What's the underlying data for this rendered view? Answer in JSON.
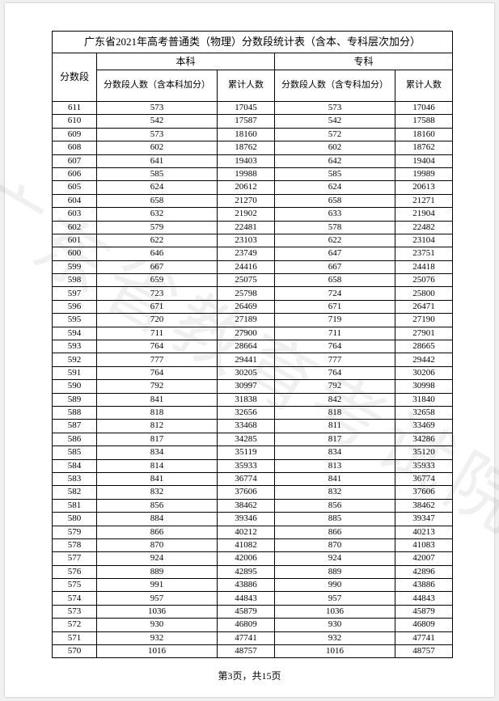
{
  "watermark": "广东省教育考试院",
  "title": "广东省2021年高考普通类（物理）分数段统计表（含本、专科层次加分）",
  "header": {
    "score": "分数段",
    "benke": "本科",
    "zhuanke": "专科",
    "benke_count": "分数段人数（含本科加分）",
    "zhuanke_count": "分数段人数（含专科加分）",
    "cumulative": "累计人数"
  },
  "footer": "第3页，共15页",
  "rows": [
    {
      "s": "611",
      "bc": "573",
      "bm": "17045",
      "zc": "573",
      "zm": "17046"
    },
    {
      "s": "610",
      "bc": "542",
      "bm": "17587",
      "zc": "542",
      "zm": "17588"
    },
    {
      "s": "609",
      "bc": "573",
      "bm": "18160",
      "zc": "572",
      "zm": "18160"
    },
    {
      "s": "608",
      "bc": "602",
      "bm": "18762",
      "zc": "602",
      "zm": "18762"
    },
    {
      "s": "607",
      "bc": "641",
      "bm": "19403",
      "zc": "642",
      "zm": "19404"
    },
    {
      "s": "606",
      "bc": "585",
      "bm": "19988",
      "zc": "585",
      "zm": "19989"
    },
    {
      "s": "605",
      "bc": "624",
      "bm": "20612",
      "zc": "624",
      "zm": "20613"
    },
    {
      "s": "604",
      "bc": "658",
      "bm": "21270",
      "zc": "658",
      "zm": "21271"
    },
    {
      "s": "603",
      "bc": "632",
      "bm": "21902",
      "zc": "633",
      "zm": "21904"
    },
    {
      "s": "602",
      "bc": "579",
      "bm": "22481",
      "zc": "578",
      "zm": "22482"
    },
    {
      "s": "601",
      "bc": "622",
      "bm": "23103",
      "zc": "622",
      "zm": "23104"
    },
    {
      "s": "600",
      "bc": "646",
      "bm": "23749",
      "zc": "647",
      "zm": "23751"
    },
    {
      "s": "599",
      "bc": "667",
      "bm": "24416",
      "zc": "667",
      "zm": "24418"
    },
    {
      "s": "598",
      "bc": "659",
      "bm": "25075",
      "zc": "658",
      "zm": "25076"
    },
    {
      "s": "597",
      "bc": "723",
      "bm": "25798",
      "zc": "724",
      "zm": "25800"
    },
    {
      "s": "596",
      "bc": "671",
      "bm": "26469",
      "zc": "671",
      "zm": "26471"
    },
    {
      "s": "595",
      "bc": "720",
      "bm": "27189",
      "zc": "719",
      "zm": "27190"
    },
    {
      "s": "594",
      "bc": "711",
      "bm": "27900",
      "zc": "711",
      "zm": "27901"
    },
    {
      "s": "593",
      "bc": "764",
      "bm": "28664",
      "zc": "764",
      "zm": "28665"
    },
    {
      "s": "592",
      "bc": "777",
      "bm": "29441",
      "zc": "777",
      "zm": "29442"
    },
    {
      "s": "591",
      "bc": "764",
      "bm": "30205",
      "zc": "764",
      "zm": "30206"
    },
    {
      "s": "590",
      "bc": "792",
      "bm": "30997",
      "zc": "792",
      "zm": "30998"
    },
    {
      "s": "589",
      "bc": "841",
      "bm": "31838",
      "zc": "842",
      "zm": "31840"
    },
    {
      "s": "588",
      "bc": "818",
      "bm": "32656",
      "zc": "818",
      "zm": "32658"
    },
    {
      "s": "587",
      "bc": "812",
      "bm": "33468",
      "zc": "811",
      "zm": "33469"
    },
    {
      "s": "586",
      "bc": "817",
      "bm": "34285",
      "zc": "817",
      "zm": "34286"
    },
    {
      "s": "585",
      "bc": "834",
      "bm": "35119",
      "zc": "834",
      "zm": "35120"
    },
    {
      "s": "584",
      "bc": "814",
      "bm": "35933",
      "zc": "813",
      "zm": "35933"
    },
    {
      "s": "583",
      "bc": "841",
      "bm": "36774",
      "zc": "841",
      "zm": "36774"
    },
    {
      "s": "582",
      "bc": "832",
      "bm": "37606",
      "zc": "832",
      "zm": "37606"
    },
    {
      "s": "581",
      "bc": "856",
      "bm": "38462",
      "zc": "856",
      "zm": "38462"
    },
    {
      "s": "580",
      "bc": "884",
      "bm": "39346",
      "zc": "885",
      "zm": "39347"
    },
    {
      "s": "579",
      "bc": "866",
      "bm": "40212",
      "zc": "866",
      "zm": "40213"
    },
    {
      "s": "578",
      "bc": "870",
      "bm": "41082",
      "zc": "870",
      "zm": "41083"
    },
    {
      "s": "577",
      "bc": "924",
      "bm": "42006",
      "zc": "924",
      "zm": "42007"
    },
    {
      "s": "576",
      "bc": "889",
      "bm": "42895",
      "zc": "889",
      "zm": "42896"
    },
    {
      "s": "575",
      "bc": "991",
      "bm": "43886",
      "zc": "990",
      "zm": "43886"
    },
    {
      "s": "574",
      "bc": "957",
      "bm": "44843",
      "zc": "957",
      "zm": "44843"
    },
    {
      "s": "573",
      "bc": "1036",
      "bm": "45879",
      "zc": "1036",
      "zm": "45879"
    },
    {
      "s": "572",
      "bc": "930",
      "bm": "46809",
      "zc": "930",
      "zm": "46809"
    },
    {
      "s": "571",
      "bc": "932",
      "bm": "47741",
      "zc": "932",
      "zm": "47741"
    },
    {
      "s": "570",
      "bc": "1016",
      "bm": "48757",
      "zc": "1016",
      "zm": "48757"
    }
  ]
}
